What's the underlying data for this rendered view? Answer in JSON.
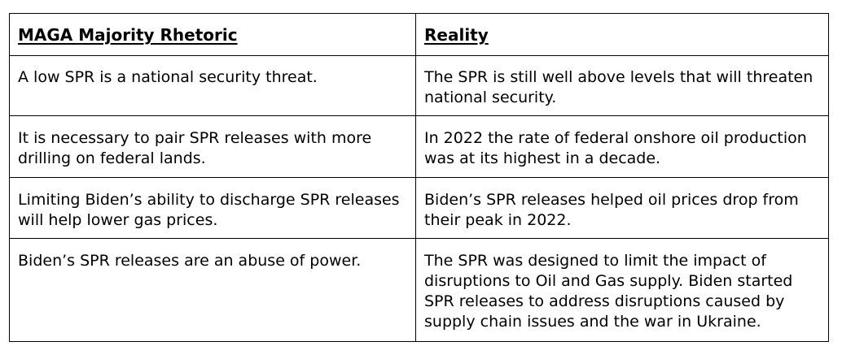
{
  "table": {
    "headers": [
      "MAGA Majority Rhetoric",
      "Reality"
    ],
    "rows": [
      {
        "rhetoric": "A low SPR is a national security threat.",
        "reality": "The SPR is still well above levels that will threaten national security."
      },
      {
        "rhetoric": "It is necessary to pair SPR releases with more drilling on federal lands.",
        "reality": "In 2022 the rate of federal onshore oil production was at its highest in a decade."
      },
      {
        "rhetoric": "Limiting Biden’s ability to discharge SPR releases will help lower gas prices.",
        "reality": "Biden’s SPR releases helped oil prices drop from their peak in 2022."
      },
      {
        "rhetoric": "Biden’s SPR releases are an abuse of power.",
        "reality": "The SPR was designed to limit the impact of disruptions to Oil and Gas supply. Biden started SPR releases to address disruptions caused by supply chain issues and the war in Ukraine."
      }
    ]
  }
}
